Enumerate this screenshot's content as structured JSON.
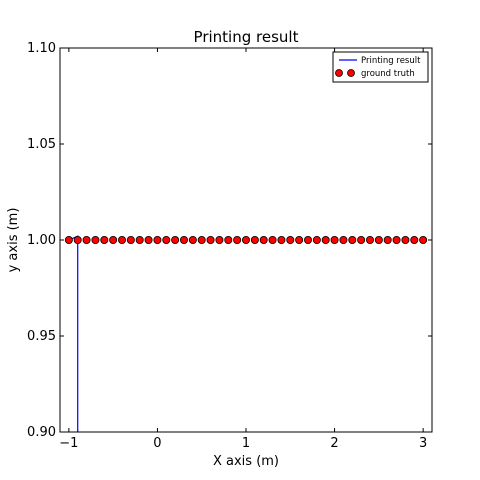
{
  "chart_data": {
    "type": "line",
    "title": "Printing result",
    "xlabel": "X axis (m)",
    "ylabel": "y axis (m)",
    "xlim": [
      -1.1,
      3.1
    ],
    "ylim": [
      0.9,
      1.1
    ],
    "x_ticks": [
      -1,
      0,
      1,
      2,
      3
    ],
    "x_tick_labels": [
      "−1",
      "0",
      "1",
      "2",
      "3"
    ],
    "y_ticks": [
      0.9,
      0.95,
      1.0,
      1.05,
      1.1
    ],
    "y_tick_labels": [
      "0.90",
      "0.95",
      "1.00",
      "1.05",
      "1.10"
    ],
    "grid": false,
    "legend_position": "top-right",
    "series": [
      {
        "name": "Printing result",
        "kind": "line",
        "color": "#0000ff",
        "x": [
          -1.0,
          -0.9,
          -0.9
        ],
        "y": [
          1.0,
          1.002,
          0.9
        ]
      },
      {
        "name": "ground truth",
        "kind": "scatter",
        "color": "#ff0000",
        "edge_color": "#000000",
        "x": [
          -1.0,
          -0.9,
          -0.8,
          -0.7,
          -0.6,
          -0.5,
          -0.4,
          -0.3,
          -0.2,
          -0.1,
          0.0,
          0.1,
          0.2,
          0.3,
          0.4,
          0.5,
          0.6,
          0.7,
          0.8,
          0.9,
          1.0,
          1.1,
          1.2,
          1.3,
          1.4,
          1.5,
          1.6,
          1.7,
          1.8,
          1.9,
          2.0,
          2.1,
          2.2,
          2.3,
          2.4,
          2.5,
          2.6,
          2.7,
          2.8,
          2.9,
          3.0
        ],
        "y": [
          1.0,
          1.0,
          1.0,
          1.0,
          1.0,
          1.0,
          1.0,
          1.0,
          1.0,
          1.0,
          1.0,
          1.0,
          1.0,
          1.0,
          1.0,
          1.0,
          1.0,
          1.0,
          1.0,
          1.0,
          1.0,
          1.0,
          1.0,
          1.0,
          1.0,
          1.0,
          1.0,
          1.0,
          1.0,
          1.0,
          1.0,
          1.0,
          1.0,
          1.0,
          1.0,
          1.0,
          1.0,
          1.0,
          1.0,
          1.0,
          1.0
        ]
      }
    ]
  }
}
